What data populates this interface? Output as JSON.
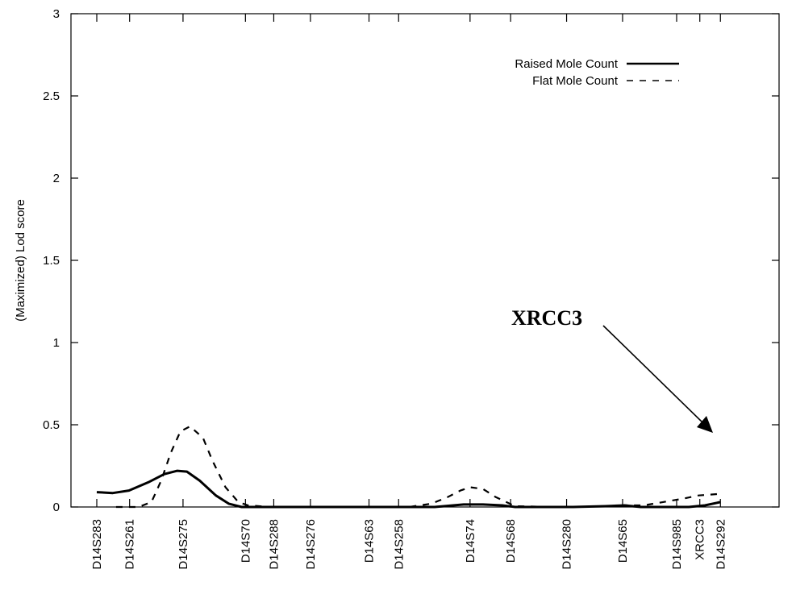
{
  "chart_data": {
    "type": "line",
    "title": "",
    "xlabel": "",
    "ylabel": "(Maximized) Lod score",
    "ylim": [
      0,
      3
    ],
    "yticks": [
      "0",
      "0.5",
      "1",
      "1.5",
      "2",
      "2.5",
      "3"
    ],
    "yticks_values": [
      0,
      0.5,
      1,
      1.5,
      2,
      2.5,
      3
    ],
    "xlim": [
      0,
      100
    ],
    "markers": [
      {
        "name": "D14S283",
        "x": 0
      },
      {
        "name": "D14S261",
        "x": 5.1
      },
      {
        "name": "D14S275",
        "x": 13.4
      },
      {
        "name": "D14S70",
        "x": 23.1
      },
      {
        "name": "D14S288",
        "x": 27.5
      },
      {
        "name": "D14S276",
        "x": 33.2
      },
      {
        "name": "D14S63",
        "x": 42.3
      },
      {
        "name": "D14S258",
        "x": 46.9
      },
      {
        "name": "D14S74",
        "x": 58.0
      },
      {
        "name": "D14S68",
        "x": 64.3
      },
      {
        "name": "D14S280",
        "x": 73.0
      },
      {
        "name": "D14S65",
        "x": 81.7
      },
      {
        "name": "D14S985",
        "x": 90.1
      },
      {
        "name": "XRCC3",
        "x": 93.7
      },
      {
        "name": "D14S292",
        "x": 96.9
      }
    ],
    "grid": false,
    "legend_position": "top-right",
    "series": [
      {
        "name": "Raised Mole Count",
        "style": "solid",
        "x": [
          0,
          2.5,
          5,
          8,
          10.5,
          12.5,
          14,
          16,
          18.5,
          20.5,
          22.5,
          23.5,
          27,
          28.5,
          33,
          36.5,
          42,
          44.5,
          48.5,
          52.5,
          57,
          60,
          63,
          65,
          71,
          74,
          79,
          82,
          84.5,
          88,
          92,
          94.5,
          96.9
        ],
        "y": [
          0.09,
          0.085,
          0.1,
          0.15,
          0.2,
          0.22,
          0.215,
          0.16,
          0.07,
          0.02,
          0,
          0,
          0,
          0,
          0,
          0,
          0,
          0,
          0,
          0,
          0.015,
          0.015,
          0.01,
          0,
          0,
          0,
          0.005,
          0.01,
          0,
          0,
          0,
          0.01,
          0.03
        ]
      },
      {
        "name": "Flat Mole Count",
        "style": "dashed",
        "x": [
          3,
          4.5,
          6.5,
          8.5,
          10,
          11.5,
          13,
          14.5,
          16.5,
          18,
          20,
          22,
          23.5,
          27,
          28.5,
          33,
          36.5,
          42,
          44.5,
          48.5,
          52,
          54.5,
          56.5,
          58,
          60,
          62,
          65,
          71,
          74,
          79,
          82,
          85,
          88,
          91,
          93.5,
          96.9
        ],
        "y": [
          0,
          0,
          0,
          0.03,
          0.16,
          0.33,
          0.46,
          0.49,
          0.42,
          0.28,
          0.12,
          0.03,
          0.01,
          0,
          0,
          0,
          0,
          0,
          0,
          0,
          0.02,
          0.06,
          0.1,
          0.12,
          0.11,
          0.06,
          0.005,
          0,
          0,
          0.005,
          0.01,
          0.01,
          0.03,
          0.05,
          0.07,
          0.08
        ]
      }
    ],
    "annotations": [
      {
        "text": "XRCC3",
        "points_to_marker": "XRCC3"
      }
    ]
  }
}
